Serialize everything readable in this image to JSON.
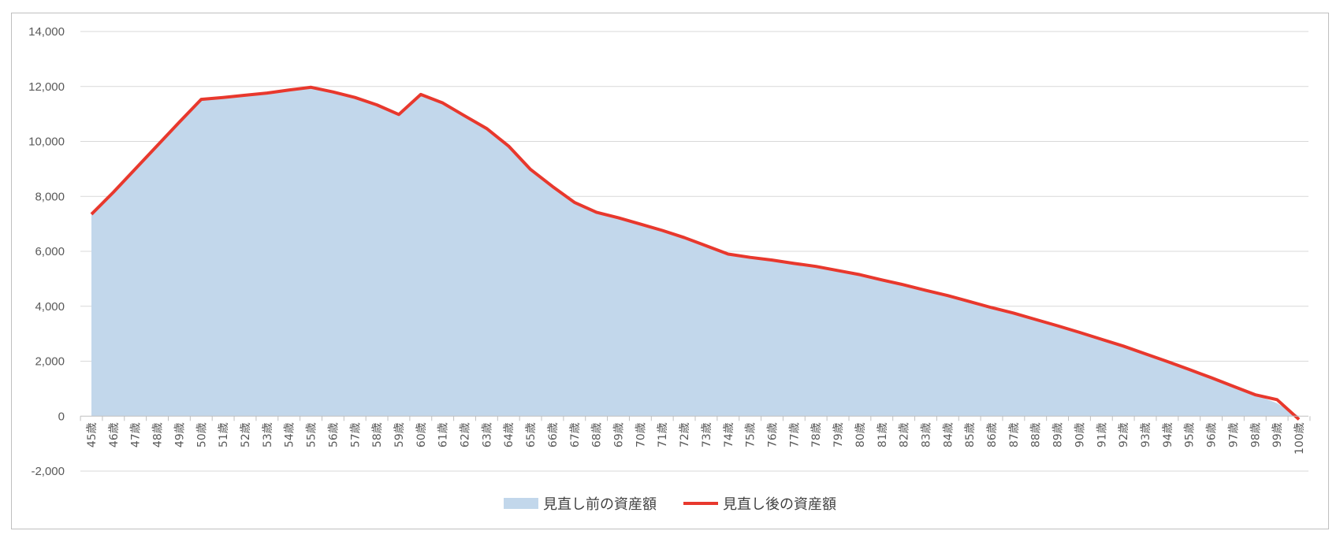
{
  "colors": {
    "area": "#c2d7eb",
    "line": "#e8382d",
    "negative_tick": "#ff0000",
    "grid": "#d9d9d9",
    "axis_text": "#595959"
  },
  "chart_data": {
    "type": "area",
    "title": "",
    "xlabel": "",
    "ylabel": "",
    "ylim": [
      -2000,
      14000
    ],
    "yticks": [
      14000,
      12000,
      10000,
      8000,
      6000,
      4000,
      2000,
      0,
      -2000
    ],
    "ytick_labels": [
      "14,000",
      "12,000",
      "10,000",
      "8,000",
      "6,000",
      "4,000",
      "2,000",
      "0",
      "-2,000"
    ],
    "grid": true,
    "legend_position": "bottom",
    "categories": [
      "45歳",
      "46歳",
      "47歳",
      "48歳",
      "49歳",
      "50歳",
      "51歳",
      "52歳",
      "53歳",
      "54歳",
      "55歳",
      "56歳",
      "57歳",
      "58歳",
      "59歳",
      "60歳",
      "61歳",
      "62歳",
      "63歳",
      "64歳",
      "65歳",
      "66歳",
      "67歳",
      "68歳",
      "69歳",
      "70歳",
      "71歳",
      "72歳",
      "73歳",
      "74歳",
      "75歳",
      "76歳",
      "77歳",
      "78歳",
      "79歳",
      "80歳",
      "81歳",
      "82歳",
      "83歳",
      "84歳",
      "85歳",
      "86歳",
      "87歳",
      "88歳",
      "89歳",
      "90歳",
      "91歳",
      "92歳",
      "93歳",
      "94歳",
      "95歳",
      "96歳",
      "97歳",
      "98歳",
      "99歳",
      "100歳"
    ],
    "series": [
      {
        "name": "見直し前の資産額",
        "kind": "area",
        "values": [
          7350,
          8150,
          9000,
          9850,
          10700,
          11530,
          11600,
          11680,
          11760,
          11870,
          11970,
          11800,
          11600,
          11330,
          10980,
          11710,
          11400,
          10930,
          10470,
          9830,
          8980,
          8360,
          7780,
          7420,
          7220,
          6990,
          6760,
          6500,
          6200,
          5900,
          5780,
          5680,
          5560,
          5450,
          5300,
          5150,
          4960,
          4780,
          4580,
          4390,
          4170,
          3950,
          3750,
          3520,
          3290,
          3050,
          2800,
          2550,
          2270,
          1990,
          1700,
          1400,
          1090,
          780,
          470,
          0
        ]
      },
      {
        "name": "見直し後の資産額",
        "kind": "line",
        "values": [
          7350,
          8150,
          9000,
          9850,
          10700,
          11530,
          11600,
          11680,
          11760,
          11870,
          11970,
          11800,
          11600,
          11330,
          10980,
          11710,
          11400,
          10930,
          10470,
          9830,
          8980,
          8360,
          7780,
          7420,
          7220,
          6990,
          6760,
          6500,
          6200,
          5900,
          5780,
          5680,
          5560,
          5450,
          5300,
          5150,
          4960,
          4780,
          4580,
          4390,
          4170,
          3950,
          3750,
          3520,
          3290,
          3050,
          2800,
          2550,
          2270,
          1990,
          1700,
          1400,
          1090,
          780,
          600,
          -120
        ]
      }
    ]
  }
}
